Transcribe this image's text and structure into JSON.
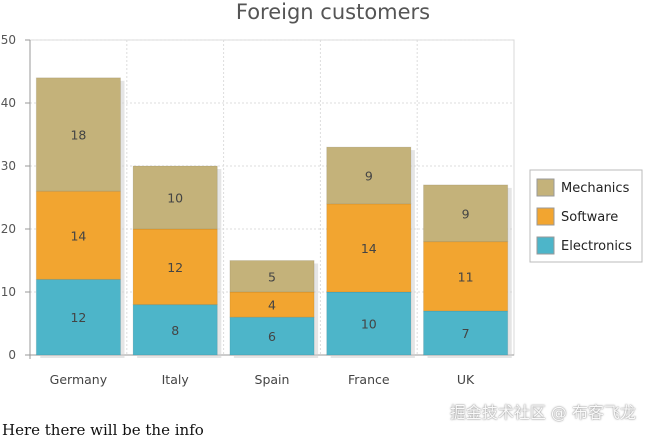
{
  "chart_data": {
    "type": "bar",
    "stacked": true,
    "title": "Foreign customers",
    "categories": [
      "Germany",
      "Italy",
      "Spain",
      "France",
      "UK"
    ],
    "series": [
      {
        "name": "Electronics",
        "values": [
          12,
          8,
          6,
          10,
          7
        ],
        "color": "#4db5c9"
      },
      {
        "name": "Software",
        "values": [
          14,
          12,
          4,
          14,
          11
        ],
        "color": "#f2a530"
      },
      {
        "name": "Mechanics",
        "values": [
          18,
          10,
          5,
          9,
          9
        ],
        "color": "#c4b27a"
      }
    ],
    "ylim": [
      0,
      50
    ],
    "yticks": [
      0,
      10,
      20,
      30,
      40,
      50
    ],
    "grid": true,
    "legend": "right"
  },
  "footer_text": "Here there will be the info",
  "watermark": "掘金技术社区 @ 布客飞龙"
}
